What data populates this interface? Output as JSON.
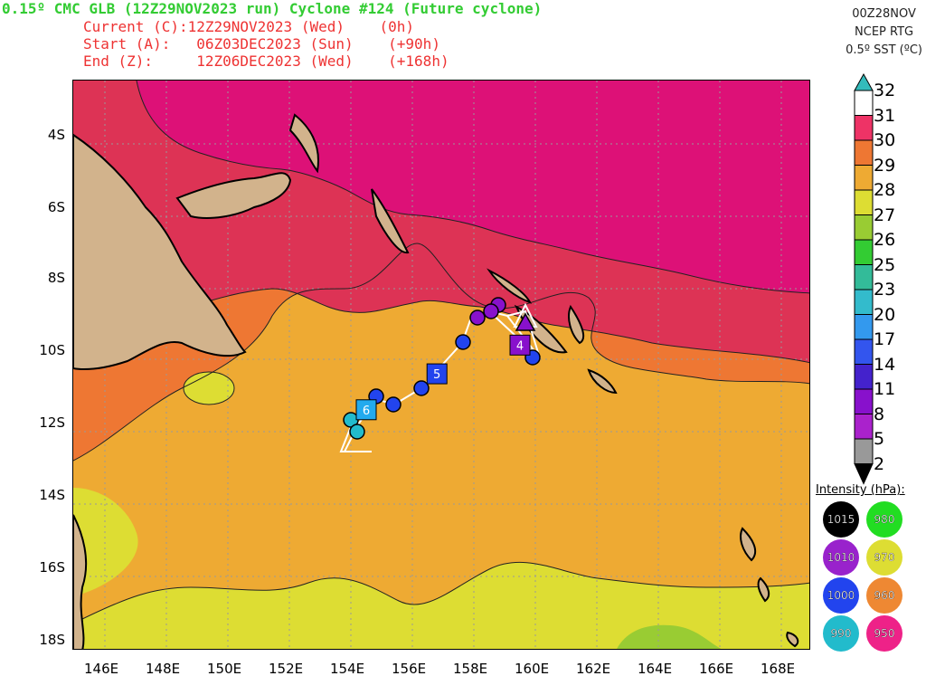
{
  "header": {
    "title": "0.15º CMC GLB (12Z29NOV2023 run) Cyclone #124 (Future cyclone)",
    "current": "Current (C):12Z29NOV2023 (Wed)    (0h)",
    "start": "Start (A):   06Z03DEC2023 (Sun)    (+90h)",
    "end": "End (Z):     12Z06DEC2023 (Wed)    (+168h)"
  },
  "run_info": {
    "line1": "00Z28NOV",
    "line2": "NCEP RTG",
    "line3": "0.5º SST (ºC)"
  },
  "axes": {
    "lat_labels": [
      "4S",
      "6S",
      "8S",
      "10S",
      "12S",
      "14S",
      "16S",
      "18S"
    ],
    "lon_labels": [
      "146E",
      "148E",
      "150E",
      "152E",
      "154E",
      "156E",
      "158E",
      "160E",
      "162E",
      "164E",
      "166E",
      "168E"
    ]
  },
  "colorbar": {
    "labels": [
      "32",
      "31",
      "30",
      "29",
      "28",
      "27",
      "26",
      "25",
      "23",
      "20",
      "17",
      "14",
      "11",
      "8",
      "5",
      "2"
    ],
    "colors": [
      "#33bbbb",
      "#ffffff",
      "#ee3366",
      "#ee7733",
      "#eeaa33",
      "#dddd33",
      "#99cc33",
      "#33cc33",
      "#33bb99",
      "#33bbcc",
      "#3399ee",
      "#3355ee",
      "#4422cc",
      "#8811cc",
      "#aa22cc",
      "#999999",
      "#000000"
    ]
  },
  "intensity": {
    "title": "Intensity (hPa):",
    "items": [
      {
        "label": "1015",
        "color": "#000000"
      },
      {
        "label": "980",
        "color": "#22dd22"
      },
      {
        "label": "1010",
        "color": "#9922cc"
      },
      {
        "label": "970",
        "color": "#dddd33"
      },
      {
        "label": "1000",
        "color": "#2244ee"
      },
      {
        "label": "960",
        "color": "#ee8833"
      },
      {
        "label": "990",
        "color": "#22bbcc"
      },
      {
        "label": "950",
        "color": "#ee2288"
      }
    ]
  },
  "track": {
    "markers": [
      {
        "label": "4",
        "lon": 159.5,
        "lat": -9.6,
        "color": "#8811cc"
      },
      {
        "label": "5",
        "lon": 156.8,
        "lat": -10.4,
        "color": "#2244ee"
      },
      {
        "label": "6",
        "lon": 154.5,
        "lat": -11.4,
        "color": "#22aaee"
      }
    ]
  },
  "sst_colors": {
    "c30": "#dd3355",
    "c31": "#dd1177",
    "c29": "#ee7733",
    "c28": "#eeaa33",
    "c27": "#dddd33",
    "c26": "#99cc33",
    "land": "#d2b38c"
  }
}
